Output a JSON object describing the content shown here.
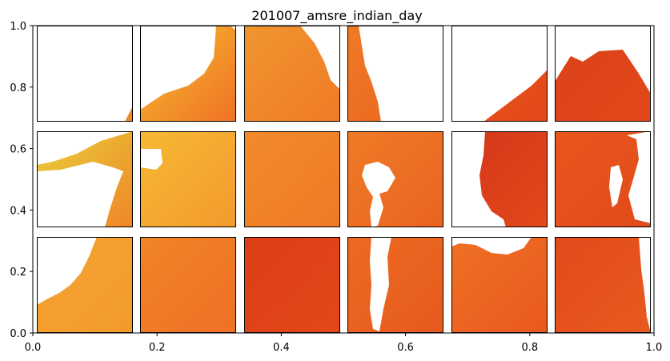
{
  "chart_data": {
    "type": "heatmap",
    "title": "201007_amsre_indian_day",
    "xlabel": "",
    "ylabel": "",
    "xlim": [
      0.0,
      1.0
    ],
    "ylim": [
      0.0,
      1.0
    ],
    "xticks": [
      "0.0",
      "0.2",
      "0.4",
      "0.6",
      "0.8",
      "1.0"
    ],
    "yticks": [
      "0.0",
      "0.2",
      "0.4",
      "0.6",
      "0.8",
      "1.0"
    ],
    "grid": false,
    "colormap": "YlOrRd (yellow to dark orange-red)",
    "missing_color": "#ffffff",
    "grid_layout": {
      "rows": 3,
      "cols": 6
    },
    "tiles": [
      {
        "row": 0,
        "col": 0,
        "coverage": "mostly empty, small filled corner bottom-right",
        "tone": "light orange",
        "base": "#f08a2c",
        "accent": "#f4a431"
      },
      {
        "row": 0,
        "col": 1,
        "coverage": "lower-right filled, upper-left empty",
        "tone": "orange with yellow streak",
        "base": "#ef7024",
        "accent": "#f6c132"
      },
      {
        "row": 0,
        "col": 2,
        "coverage": "mostly filled, empty top-right corner",
        "tone": "orange",
        "base": "#ef7b26",
        "accent": "#f19530"
      },
      {
        "row": 0,
        "col": 3,
        "coverage": "thin filled strip on left",
        "tone": "orange-red",
        "base": "#ea6420",
        "accent": "#ef7a25"
      },
      {
        "row": 0,
        "col": 4,
        "coverage": "filled triangle bottom-right",
        "tone": "red-orange",
        "base": "#e2481a",
        "accent": "#e8561c"
      },
      {
        "row": 0,
        "col": 5,
        "coverage": "filled dome, empty top",
        "tone": "red-orange",
        "base": "#e2491a",
        "accent": "#d9401a"
      },
      {
        "row": 1,
        "col": 0,
        "coverage": "diagonal band and lower-right wedge",
        "tone": "orange to yellow",
        "base": "#f08628",
        "accent": "#e8cf3a"
      },
      {
        "row": 1,
        "col": 1,
        "coverage": "filled with small hole top-left",
        "tone": "orange-yellow",
        "base": "#f39a2d",
        "accent": "#f6b934"
      },
      {
        "row": 1,
        "col": 2,
        "coverage": "fully filled",
        "tone": "orange",
        "base": "#ef7a27",
        "accent": "#f18a2a"
      },
      {
        "row": 1,
        "col": 3,
        "coverage": "filled with large blob hole",
        "tone": "orange-red",
        "base": "#ea6321",
        "accent": "#ef7b26"
      },
      {
        "row": 1,
        "col": 4,
        "coverage": "filled right side, empty left",
        "tone": "red-orange",
        "base": "#e2491a",
        "accent": "#d3351a"
      },
      {
        "row": 1,
        "col": 5,
        "coverage": "filled with hole on right",
        "tone": "red-orange",
        "base": "#e24a1b",
        "accent": "#e8561c"
      },
      {
        "row": 2,
        "col": 0,
        "coverage": "lower-right filled, upper-left empty",
        "tone": "light orange",
        "base": "#f39a2d",
        "accent": "#f4a431"
      },
      {
        "row": 2,
        "col": 1,
        "coverage": "fully filled",
        "tone": "orange",
        "base": "#ef7025",
        "accent": "#f08428"
      },
      {
        "row": 2,
        "col": 2,
        "coverage": "fully filled",
        "tone": "red-orange",
        "base": "#e2481a",
        "accent": "#dd3d18"
      },
      {
        "row": 2,
        "col": 3,
        "coverage": "filled with vertical hole center",
        "tone": "orange-red",
        "base": "#e65a1d",
        "accent": "#ec6a22"
      },
      {
        "row": 2,
        "col": 4,
        "coverage": "filled, empty top bay",
        "tone": "orange-red",
        "base": "#e9591e",
        "accent": "#ef7024"
      },
      {
        "row": 2,
        "col": 5,
        "coverage": "filled, ragged right edge",
        "tone": "orange-red",
        "base": "#e85a1e",
        "accent": "#e24a1b"
      }
    ]
  }
}
